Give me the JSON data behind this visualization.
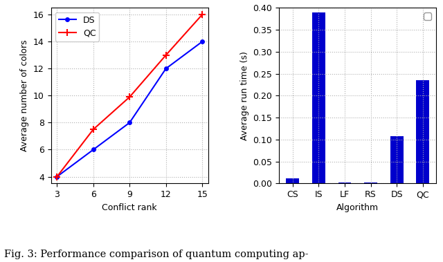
{
  "left_plot": {
    "xlabel": "Conflict rank",
    "ylabel": "Average number of colors",
    "x_ticks": [
      3,
      6,
      9,
      12,
      15
    ],
    "ds_x": [
      3,
      6,
      9,
      12,
      15
    ],
    "ds_y": [
      4,
      6,
      8,
      12,
      14
    ],
    "qc_x": [
      3,
      6,
      9,
      12,
      15
    ],
    "qc_y": [
      4,
      7.5,
      9.9,
      13,
      16
    ],
    "ds_color": "#0000ff",
    "qc_color": "#ff0000",
    "ds_marker": "o",
    "qc_marker": "+",
    "ylim": [
      3.5,
      16.5
    ],
    "xlim": [
      2.5,
      15.5
    ],
    "yticks": [
      4,
      6,
      8,
      10,
      12,
      14,
      16
    ]
  },
  "right_plot": {
    "xlabel": "Algorithm",
    "ylabel": "Average run time (s)",
    "categories": [
      "CS",
      "IS",
      "LF",
      "RS",
      "DS",
      "QC"
    ],
    "values": [
      0.012,
      0.389,
      0.002,
      0.002,
      0.107,
      0.235
    ],
    "bar_color": "#0000cc",
    "ylim": [
      0,
      0.4
    ],
    "yticks": [
      0.0,
      0.05,
      0.1,
      0.15,
      0.2,
      0.25,
      0.3,
      0.35,
      0.4
    ]
  },
  "caption": "Fig. 3: Performance comparison of quantum computing ap-",
  "caption_fontsize": 10.5,
  "grid_color": "#b0b0b0",
  "grid_linestyle": ":",
  "background_color": "#ffffff"
}
